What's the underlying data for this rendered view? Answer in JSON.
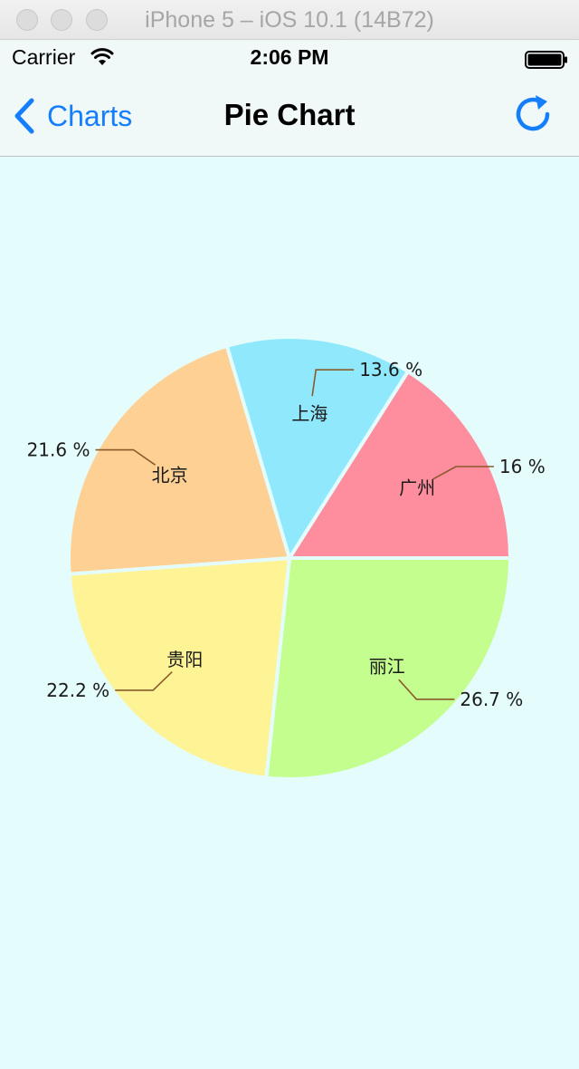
{
  "window": {
    "title": "iPhone 5 – iOS 10.1 (14B72)"
  },
  "status_bar": {
    "carrier": "Carrier",
    "time": "2:06 PM",
    "wifi_icon": "wifi-icon",
    "battery_icon": "battery-icon"
  },
  "nav_bar": {
    "back_label": "Charts",
    "back_icon": "chevron-left-icon",
    "title": "Pie Chart",
    "refresh_icon": "refresh-icon",
    "accent_color": "#157efb"
  },
  "chart_data": {
    "type": "pie",
    "start_angle_deg": 0,
    "slices": [
      {
        "label": "丽江",
        "value": 26.7,
        "display": "26.7 %",
        "color": "#c3fe8e"
      },
      {
        "label": "贵阳",
        "value": 22.2,
        "display": "22.2 %",
        "color": "#fef496"
      },
      {
        "label": "北京",
        "value": 21.6,
        "display": "21.6 %",
        "color": "#fed094"
      },
      {
        "label": "上海",
        "value": 13.6,
        "display": "13.6 %",
        "color": "#90e8fd"
      },
      {
        "label": "广州",
        "value": 16,
        "display": "16 %",
        "color": "#fe8d9d"
      }
    ],
    "leader_line_color": "#8a5a2b",
    "background_color": "#e5fcfd"
  }
}
